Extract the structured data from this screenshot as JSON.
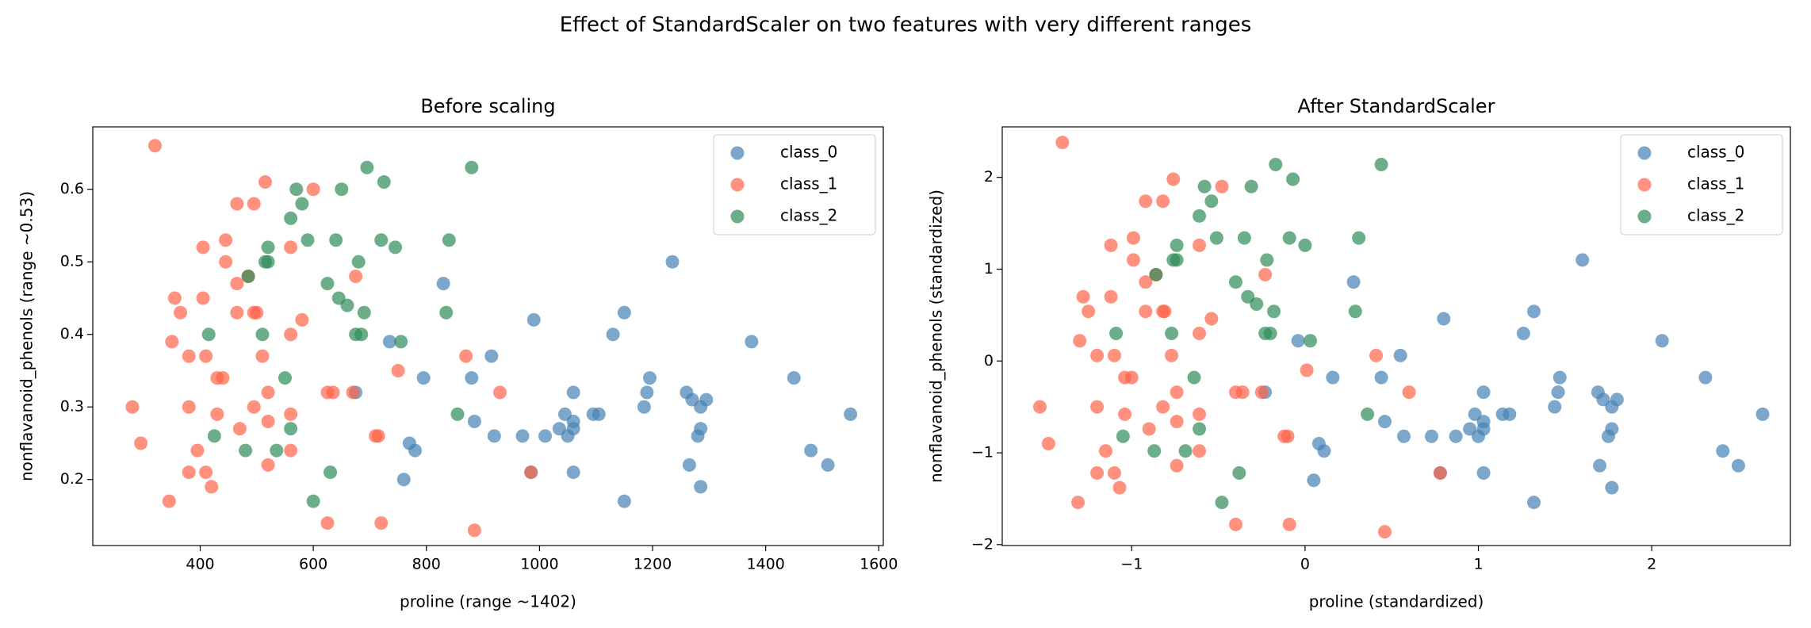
{
  "title": "Effect of StandardScaler on two features with very different ranges",
  "chart_data": [
    {
      "type": "scatter",
      "title": "Before scaling",
      "x_label": "proline (range ~1402)",
      "y_label": "nonflavanoid_phenols (range ~0.53)",
      "xlim": [
        210,
        1608
      ],
      "ylim": [
        0.109,
        0.686
      ],
      "xticks": [
        400,
        600,
        800,
        1000,
        1200,
        1400,
        1600
      ],
      "yticks": [
        0.2,
        0.3,
        0.4,
        0.5,
        0.6
      ],
      "legend": "upper right",
      "series": [
        {
          "name": "class_0",
          "color": "#4682b4",
          "x": [
            1235,
            830,
            1375,
            1150,
            990,
            1130,
            735,
            915,
            1450,
            795,
            880,
            1195,
            1060,
            1260,
            675,
            1190,
            1295,
            1270,
            1285,
            1185,
            1550,
            1045,
            1095,
            1105,
            1060,
            885,
            1035,
            1285,
            1060,
            770,
            1050,
            1010,
            970,
            920,
            1280,
            780,
            1480,
            1510,
            1265,
            760,
            1060,
            985,
            1285,
            1150
          ],
          "y": [
            0.5,
            0.47,
            0.39,
            0.43,
            0.42,
            0.4,
            0.39,
            0.37,
            0.34,
            0.34,
            0.34,
            0.34,
            0.32,
            0.32,
            0.32,
            0.32,
            0.31,
            0.31,
            0.3,
            0.3,
            0.29,
            0.29,
            0.29,
            0.29,
            0.28,
            0.28,
            0.27,
            0.27,
            0.27,
            0.25,
            0.26,
            0.26,
            0.26,
            0.26,
            0.26,
            0.24,
            0.24,
            0.22,
            0.22,
            0.2,
            0.21,
            0.21,
            0.19,
            0.17
          ]
        },
        {
          "name": "class_1",
          "color": "#ff6347",
          "x": [
            320,
            515,
            600,
            465,
            495,
            445,
            405,
            560,
            445,
            485,
            465,
            675,
            355,
            405,
            365,
            465,
            495,
            500,
            580,
            560,
            350,
            380,
            410,
            510,
            870,
            750,
            430,
            440,
            520,
            625,
            635,
            670,
            930,
            280,
            380,
            495,
            430,
            560,
            520,
            470,
            710,
            715,
            295,
            395,
            560,
            380,
            410,
            985,
            520,
            420,
            345,
            625,
            720,
            885
          ],
          "y": [
            0.66,
            0.61,
            0.6,
            0.58,
            0.58,
            0.53,
            0.52,
            0.52,
            0.5,
            0.48,
            0.47,
            0.48,
            0.45,
            0.45,
            0.43,
            0.43,
            0.43,
            0.43,
            0.42,
            0.4,
            0.39,
            0.37,
            0.37,
            0.37,
            0.37,
            0.35,
            0.34,
            0.34,
            0.32,
            0.32,
            0.32,
            0.32,
            0.32,
            0.3,
            0.3,
            0.3,
            0.29,
            0.29,
            0.28,
            0.27,
            0.26,
            0.26,
            0.25,
            0.24,
            0.24,
            0.21,
            0.21,
            0.21,
            0.22,
            0.19,
            0.17,
            0.14,
            0.14,
            0.13
          ]
        },
        {
          "name": "class_2",
          "color": "#2e8b57",
          "x": [
            695,
            880,
            570,
            650,
            725,
            580,
            560,
            590,
            640,
            720,
            840,
            745,
            520,
            520,
            515,
            680,
            485,
            625,
            645,
            660,
            690,
            835,
            415,
            510,
            675,
            685,
            755,
            550,
            855,
            560,
            425,
            535,
            480,
            630,
            600
          ],
          "y": [
            0.63,
            0.63,
            0.6,
            0.6,
            0.61,
            0.58,
            0.56,
            0.53,
            0.53,
            0.53,
            0.53,
            0.52,
            0.52,
            0.5,
            0.5,
            0.5,
            0.48,
            0.47,
            0.45,
            0.44,
            0.43,
            0.43,
            0.4,
            0.4,
            0.4,
            0.4,
            0.39,
            0.34,
            0.29,
            0.27,
            0.26,
            0.24,
            0.24,
            0.21,
            0.17
          ]
        }
      ]
    },
    {
      "type": "scatter",
      "title": "After StandardScaler",
      "x_label": "proline (standardized)",
      "y_label": "nonflavanoid_phenols (standardized)",
      "xlim": [
        -1.747,
        2.8
      ],
      "ylim": [
        -2.01,
        2.55
      ],
      "xticks": [
        {
          "value": -1,
          "label": "−1"
        },
        0,
        1,
        2
      ],
      "yticks": [
        {
          "value": -2,
          "label": "−2"
        },
        {
          "value": -1,
          "label": "−1"
        },
        0,
        1,
        2
      ],
      "legend": "upper right",
      "series": [
        {
          "name": "class_0",
          "color": "#4682b4",
          "x": [
            1.6,
            0.28,
            2.06,
            1.32,
            0.8,
            1.26,
            -0.04,
            0.55,
            2.31,
            0.16,
            0.44,
            1.47,
            1.03,
            1.69,
            -0.23,
            1.46,
            1.8,
            1.72,
            1.77,
            1.44,
            2.64,
            0.98,
            1.14,
            1.18,
            1.03,
            0.46,
            0.95,
            1.77,
            1.03,
            0.08,
            1.0,
            0.87,
            0.73,
            0.57,
            1.75,
            0.11,
            2.41,
            2.5,
            1.7,
            0.05,
            1.03,
            0.78,
            1.77,
            1.32
          ],
          "y": [
            1.1,
            0.86,
            0.22,
            0.54,
            0.46,
            0.3,
            0.22,
            0.06,
            -0.18,
            -0.18,
            -0.18,
            -0.18,
            -0.34,
            -0.34,
            -0.34,
            -0.34,
            -0.42,
            -0.42,
            -0.5,
            -0.5,
            -0.58,
            -0.58,
            -0.58,
            -0.58,
            -0.66,
            -0.66,
            -0.74,
            -0.74,
            -0.74,
            -0.9,
            -0.82,
            -0.82,
            -0.82,
            -0.82,
            -0.82,
            -0.98,
            -0.98,
            -1.14,
            -1.14,
            -1.3,
            -1.22,
            -1.22,
            -1.38,
            -1.54
          ]
        },
        {
          "name": "class_1",
          "color": "#ff6347",
          "x": [
            -1.4,
            -0.76,
            -0.48,
            -0.92,
            -0.82,
            -0.99,
            -1.12,
            -0.61,
            -0.99,
            -0.86,
            -0.92,
            -0.23,
            -1.28,
            -1.12,
            -1.25,
            -0.92,
            -0.82,
            -0.81,
            -0.54,
            -0.61,
            -1.3,
            -1.2,
            -1.1,
            -0.77,
            0.41,
            0.01,
            -1.04,
            -1.0,
            -0.74,
            -0.4,
            -0.36,
            -0.25,
            0.6,
            -1.53,
            -1.2,
            -0.82,
            -1.04,
            -0.61,
            -0.74,
            -0.9,
            -0.12,
            -0.1,
            -1.48,
            -1.15,
            -0.61,
            -1.2,
            -1.1,
            0.78,
            -0.74,
            -1.07,
            -1.31,
            -0.4,
            -0.09,
            0.46
          ],
          "y": [
            2.38,
            1.98,
            1.9,
            1.74,
            1.74,
            1.34,
            1.26,
            1.26,
            1.1,
            0.94,
            0.86,
            0.94,
            0.7,
            0.7,
            0.54,
            0.54,
            0.54,
            0.54,
            0.46,
            0.3,
            0.22,
            0.06,
            0.06,
            0.06,
            0.06,
            -0.1,
            -0.18,
            -0.18,
            -0.34,
            -0.34,
            -0.34,
            -0.34,
            -0.34,
            -0.5,
            -0.5,
            -0.5,
            -0.58,
            -0.58,
            -0.66,
            -0.74,
            -0.82,
            -0.82,
            -0.9,
            -0.98,
            -0.98,
            -1.22,
            -1.22,
            -1.22,
            -1.14,
            -1.38,
            -1.54,
            -1.78,
            -1.78,
            -1.86
          ]
        },
        {
          "name": "class_2",
          "color": "#2e8b57",
          "x": [
            -0.17,
            0.44,
            -0.58,
            -0.31,
            -0.07,
            -0.54,
            -0.61,
            -0.51,
            -0.35,
            -0.09,
            0.31,
            0.0,
            -0.74,
            -0.74,
            -0.76,
            -0.22,
            -0.86,
            -0.4,
            -0.33,
            -0.28,
            -0.18,
            0.29,
            -1.09,
            -0.77,
            -0.23,
            -0.2,
            0.03,
            -0.64,
            0.36,
            -0.61,
            -1.05,
            -0.69,
            -0.87,
            -0.38,
            -0.48
          ],
          "y": [
            2.14,
            2.14,
            1.9,
            1.9,
            1.98,
            1.74,
            1.58,
            1.34,
            1.34,
            1.34,
            1.34,
            1.26,
            1.26,
            1.1,
            1.1,
            1.1,
            0.94,
            0.86,
            0.7,
            0.62,
            0.54,
            0.54,
            0.3,
            0.3,
            0.3,
            0.3,
            0.22,
            -0.18,
            -0.58,
            -0.74,
            -0.82,
            -0.98,
            -0.98,
            -1.22,
            -1.54
          ]
        }
      ]
    }
  ]
}
